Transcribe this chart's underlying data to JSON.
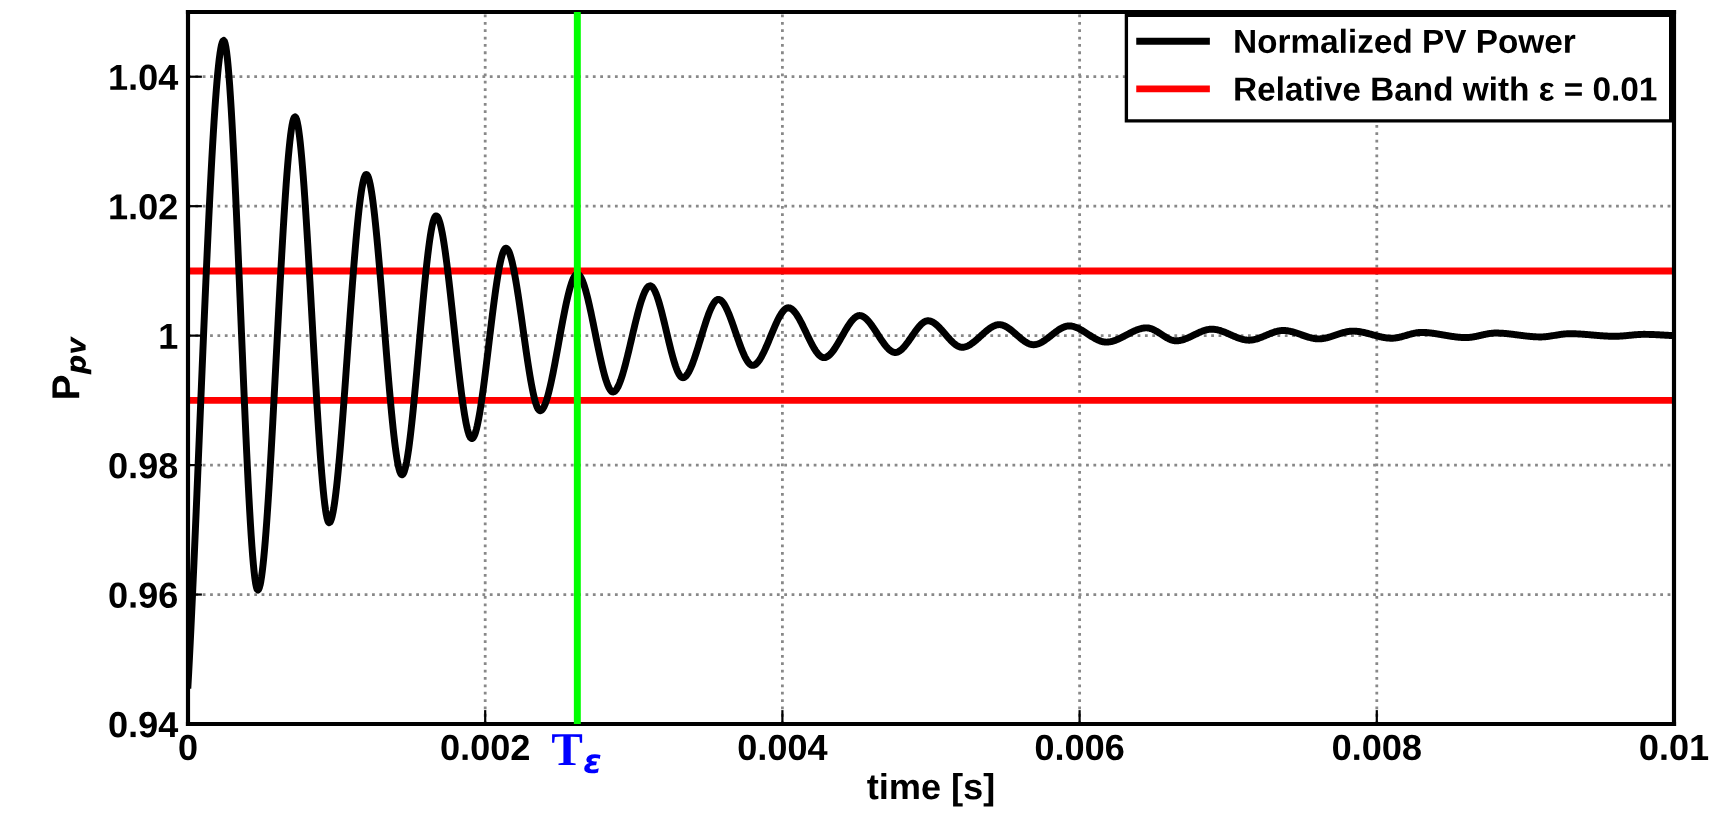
{
  "chart_data": {
    "type": "line",
    "xlabel": "time [s]",
    "ylabel": "P$_{pv}$",
    "x": [
      0,
      0.00024,
      0.00047,
      0.00072,
      0.00095,
      0.0012,
      0.00144,
      0.00167,
      0.00191,
      0.00214,
      0.00237,
      0.00262,
      0.00286,
      0.00311,
      0.00333,
      0.00357,
      0.0038,
      0.00404,
      0.00428,
      0.00452,
      0.00476,
      0.00498,
      0.00521,
      0.00546,
      0.00569,
      0.00593,
      0.00618,
      0.00645,
      0.00665,
      0.00689,
      0.00714,
      0.00737,
      0.00761,
      0.00784,
      0.0081,
      0.0083,
      0.0086,
      0.0088,
      0.0091,
      0.0093,
      0.0096,
      0.0098,
      0.01
    ],
    "series": [
      {
        "name": "Normalized PV Power",
        "color": "#000000",
        "values": [
          0.946,
          1.0456,
          0.9607,
          1.0338,
          0.9711,
          1.0249,
          0.9785,
          1.0185,
          0.9841,
          1.0135,
          0.9884,
          1.0095,
          0.9913,
          1.0077,
          0.9935,
          1.0056,
          0.9954,
          1.0043,
          0.9966,
          1.0031,
          0.9974,
          1.0023,
          0.9982,
          1.0017,
          0.9986,
          1.0015,
          0.999,
          1.0012,
          0.9992,
          1.001,
          0.9993,
          1.0008,
          0.9995,
          1.0007,
          0.9996,
          1.0005,
          0.9997,
          1.0004,
          0.9998,
          1.0003,
          0.9999,
          1.0002,
          1.0
        ]
      },
      {
        "name": "Relative Band with ε = 0.01",
        "color": "#ff0000",
        "values": [
          1.01,
          1.01,
          1.01,
          1.01,
          1.01,
          1.01,
          1.01,
          1.01,
          1.01,
          1.01,
          1.01,
          1.01,
          1.01,
          1.01,
          1.01,
          1.01,
          1.01,
          1.01,
          1.01,
          1.01,
          1.01,
          1.01,
          1.01,
          1.01,
          1.01,
          1.01,
          1.01,
          1.01,
          1.01,
          1.01,
          1.01,
          1.01,
          1.01,
          1.01,
          1.01,
          1.01,
          1.01,
          1.01,
          1.01,
          1.01,
          1.01,
          1.01,
          1.01
        ]
      },
      {
        "color": "#ff0000",
        "values": [
          0.99,
          0.99,
          0.99,
          0.99,
          0.99,
          0.99,
          0.99,
          0.99,
          0.99,
          0.99,
          0.99,
          0.99,
          0.99,
          0.99,
          0.99,
          0.99,
          0.99,
          0.99,
          0.99,
          0.99,
          0.99,
          0.99,
          0.99,
          0.99,
          0.99,
          0.99,
          0.99,
          0.99,
          0.99,
          0.99,
          0.99,
          0.99,
          0.99,
          0.99,
          0.99,
          0.99,
          0.99,
          0.99,
          0.99,
          0.99,
          0.99,
          0.99,
          0.99
        ]
      }
    ],
    "ref_lines": [
      {
        "axis": "x",
        "value": 0.00262,
        "label": "T$_{ε}$",
        "color": "#00ff00"
      }
    ],
    "xlim": [
      0,
      0.01
    ],
    "xticks": [
      0,
      0.002,
      0.004,
      0.006,
      0.008,
      0.01
    ],
    "ylim": [
      0.94,
      1.05
    ],
    "yticks": [
      0.94,
      0.96,
      0.98,
      1,
      1.02,
      1.04
    ],
    "grid": true,
    "legend": "top right",
    "line_style": "solid",
    "marker": "none"
  }
}
